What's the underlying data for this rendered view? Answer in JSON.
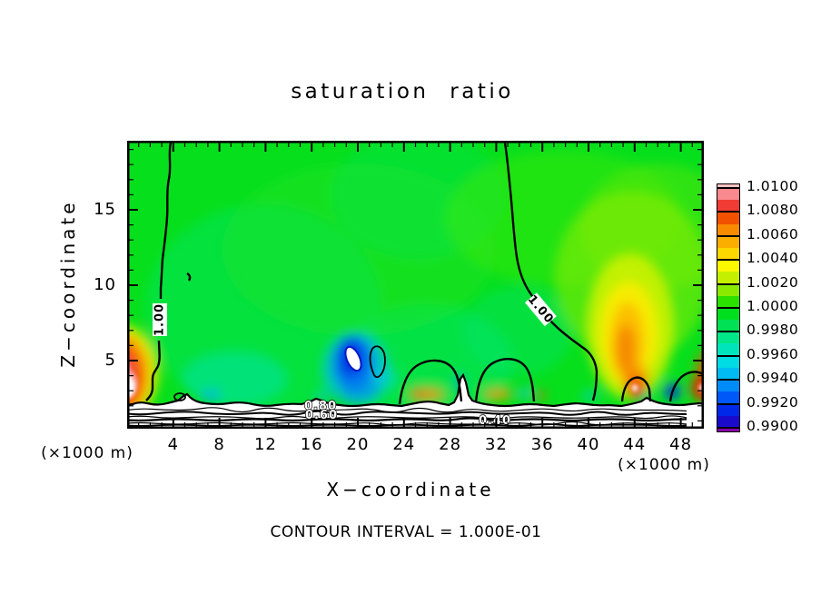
{
  "chart_data": {
    "type": "heatmap",
    "title": "saturation ratio",
    "xlabel": "X−coordinate",
    "ylabel": "Z−coordinate",
    "x_units_label": "(×1000 m)",
    "z_units_label": "(×1000 m)",
    "footnote": "CONTOUR INTERVAL = 1.000E-01",
    "contour_interval": 0.1,
    "x_range": [
      0,
      50
    ],
    "z_range": [
      0,
      20
    ],
    "x_major_ticks": [
      4,
      8,
      12,
      16,
      20,
      24,
      28,
      32,
      36,
      40,
      44,
      48
    ],
    "x_minor_tick_step": 1,
    "z_major_ticks": [
      5,
      10,
      15
    ],
    "z_minor_tick_step": 1,
    "grid": false,
    "legend_position": "right",
    "colorbar": {
      "tick_labels": [
        "1.0100",
        "1.0080",
        "1.0060",
        "1.0040",
        "1.0020",
        "1.0000",
        "0.9980",
        "0.9960",
        "0.9940",
        "0.9920",
        "0.9900"
      ],
      "value_min": 0.99,
      "value_max": 1.01,
      "label_step": 0.002,
      "segment_step": 0.001,
      "segment_colors_top_to_bottom": [
        "#FBC2C4",
        "#F8898E",
        "#F03C34",
        "#F25200",
        "#F88A00",
        "#FCAE00",
        "#FCD800",
        "#FCF800",
        "#C4F000",
        "#8AEA00",
        "#2CE000",
        "#00DE20",
        "#00E254",
        "#00E688",
        "#00E4BC",
        "#00DCE4",
        "#00BCF2",
        "#008CF8",
        "#0058F8",
        "#0028E8",
        "#1A0ACC",
        "#8A00AA"
      ]
    },
    "contour_labels": {
      "upper_left_line": "1.00",
      "upper_right_line": "1.00",
      "surface_band_1": "0.80",
      "surface_band_2": "0.60",
      "surface_band_3": "0.40"
    },
    "field_features": [
      {
        "feature": "background field",
        "value": "≈ 1.000 (green) over most of the domain"
      },
      {
        "feature": "supersaturated plume",
        "x": 44,
        "z": "3–9",
        "peak_value": "≈ 1.005 (yellow-orange)"
      },
      {
        "feature": "left-edge hotspot",
        "x": 0.5,
        "z": "2–4",
        "peak_value": "> 1.010 (white/red)"
      },
      {
        "feature": "subsaturated pocket",
        "x": 19.5,
        "z": "4–6",
        "min_value": "< 0.990 (white/blue)"
      },
      {
        "feature": "near-surface dry layer",
        "z": "< 2.2",
        "values": "0.90 down to < 0.40, contour lines every 0.10"
      }
    ]
  },
  "colors": {
    "background": "#FFFFFF",
    "plot_base_green": "#06DF1C",
    "frame": "#000000",
    "text": "#000000"
  }
}
